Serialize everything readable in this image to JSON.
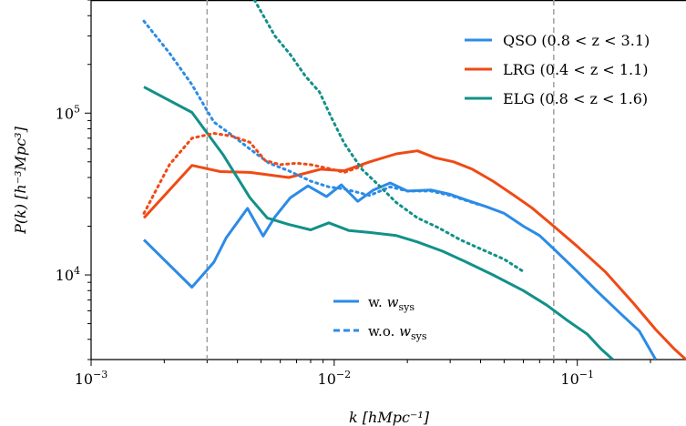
{
  "chart_data": {
    "type": "line",
    "xscale": "log",
    "yscale": "log",
    "xlim": [
      0.001,
      0.28
    ],
    "ylim": [
      3000,
      500000
    ],
    "xlabel": "k [hMpc⁻¹]",
    "ylabel": "P(k) [h⁻³Mpc³]",
    "x_ticks": [
      {
        "value": 0.001,
        "base": "10",
        "exp": "−3"
      },
      {
        "value": 0.01,
        "base": "10",
        "exp": "−2"
      },
      {
        "value": 0.1,
        "base": "10",
        "exp": "−1"
      }
    ],
    "y_ticks": [
      {
        "value": 10000,
        "base": "10",
        "exp": "4"
      },
      {
        "value": 100000,
        "base": "10",
        "exp": "5"
      }
    ],
    "vlines": [
      0.003,
      0.08
    ],
    "series": [
      {
        "name": "QSO (0.8 < z < 3.1)",
        "color": "#2c8be6",
        "style": "solid",
        "points": [
          [
            0.00165,
            16500
          ],
          [
            0.0026,
            8400
          ],
          [
            0.0032,
            12000
          ],
          [
            0.0036,
            17000
          ],
          [
            0.0044,
            25800
          ],
          [
            0.0051,
            17400
          ],
          [
            0.0057,
            22800
          ],
          [
            0.0066,
            30000
          ],
          [
            0.0078,
            35500
          ],
          [
            0.0093,
            30500
          ],
          [
            0.0107,
            36000
          ],
          [
            0.0125,
            28500
          ],
          [
            0.0145,
            33500
          ],
          [
            0.017,
            37000
          ],
          [
            0.02,
            33000
          ],
          [
            0.025,
            33500
          ],
          [
            0.03,
            31500
          ],
          [
            0.035,
            29000
          ],
          [
            0.042,
            26500
          ],
          [
            0.05,
            24000
          ],
          [
            0.06,
            20000
          ],
          [
            0.07,
            17500
          ],
          [
            0.08,
            14500
          ],
          [
            0.1,
            10500
          ],
          [
            0.12,
            8000
          ],
          [
            0.15,
            5800
          ],
          [
            0.18,
            4500
          ],
          [
            0.21,
            3000
          ]
        ]
      },
      {
        "name": "LRG (0.4 < z < 1.1)",
        "color": "#ef4a16",
        "style": "solid",
        "points": [
          [
            0.00165,
            22500
          ],
          [
            0.0026,
            47500
          ],
          [
            0.0034,
            43500
          ],
          [
            0.0045,
            43000
          ],
          [
            0.0065,
            40000
          ],
          [
            0.0088,
            45000
          ],
          [
            0.011,
            44000
          ],
          [
            0.014,
            50000
          ],
          [
            0.018,
            56000
          ],
          [
            0.022,
            58500
          ],
          [
            0.026,
            53000
          ],
          [
            0.031,
            50000
          ],
          [
            0.037,
            45000
          ],
          [
            0.045,
            38000
          ],
          [
            0.055,
            31000
          ],
          [
            0.065,
            26000
          ],
          [
            0.08,
            20000
          ],
          [
            0.1,
            15000
          ],
          [
            0.13,
            10500
          ],
          [
            0.17,
            6700
          ],
          [
            0.21,
            4600
          ],
          [
            0.25,
            3500
          ],
          [
            0.28,
            3000
          ]
        ]
      },
      {
        "name": "ELG (0.8 < z < 1.6)",
        "color": "#12908a",
        "style": "solid",
        "points": [
          [
            0.00165,
            145000
          ],
          [
            0.0026,
            101000
          ],
          [
            0.0035,
            55000
          ],
          [
            0.0045,
            30000
          ],
          [
            0.0053,
            22500
          ],
          [
            0.0065,
            20500
          ],
          [
            0.008,
            19000
          ],
          [
            0.0095,
            21000
          ],
          [
            0.0115,
            18800
          ],
          [
            0.014,
            18300
          ],
          [
            0.018,
            17500
          ],
          [
            0.022,
            16000
          ],
          [
            0.028,
            14000
          ],
          [
            0.035,
            12000
          ],
          [
            0.045,
            10000
          ],
          [
            0.06,
            8000
          ],
          [
            0.075,
            6500
          ],
          [
            0.09,
            5300
          ],
          [
            0.11,
            4300
          ],
          [
            0.125,
            3500
          ],
          [
            0.14,
            3000
          ]
        ]
      },
      {
        "name": "",
        "color": "#2c8be6",
        "style": "dotted",
        "points": [
          [
            0.00165,
            370000
          ],
          [
            0.0021,
            235000
          ],
          [
            0.0026,
            150000
          ],
          [
            0.0032,
            88000
          ],
          [
            0.0038,
            73000
          ],
          [
            0.0045,
            60000
          ],
          [
            0.0054,
            49000
          ],
          [
            0.0065,
            44000
          ],
          [
            0.008,
            38000
          ],
          [
            0.0095,
            35000
          ],
          [
            0.011,
            34000
          ],
          [
            0.014,
            31000
          ],
          [
            0.017,
            35000
          ],
          [
            0.02,
            33000
          ],
          [
            0.025,
            33000
          ],
          [
            0.03,
            31000
          ],
          [
            0.04,
            27000
          ]
        ]
      },
      {
        "name": "",
        "color": "#ef4a16",
        "style": "dotted",
        "points": [
          [
            0.00165,
            24000
          ],
          [
            0.0021,
            48000
          ],
          [
            0.0026,
            70000
          ],
          [
            0.0032,
            75000
          ],
          [
            0.0038,
            72000
          ],
          [
            0.0045,
            66000
          ],
          [
            0.0052,
            51000
          ],
          [
            0.006,
            48000
          ],
          [
            0.007,
            49000
          ],
          [
            0.008,
            48000
          ],
          [
            0.0095,
            45500
          ],
          [
            0.011,
            43000
          ],
          [
            0.013,
            47000
          ]
        ]
      },
      {
        "name": "",
        "color": "#12908a",
        "style": "dotted",
        "points": [
          [
            0.0047,
            500000
          ],
          [
            0.0057,
            300000
          ],
          [
            0.0066,
            230000
          ],
          [
            0.0076,
            170000
          ],
          [
            0.0087,
            135000
          ],
          [
            0.0098,
            92000
          ],
          [
            0.011,
            65000
          ],
          [
            0.013,
            45000
          ],
          [
            0.0155,
            35000
          ],
          [
            0.018,
            28000
          ],
          [
            0.022,
            22500
          ],
          [
            0.027,
            19500
          ],
          [
            0.033,
            16500
          ],
          [
            0.04,
            14500
          ],
          [
            0.05,
            12500
          ],
          [
            0.06,
            10500
          ]
        ]
      }
    ],
    "legend_top": {
      "position": "top-right",
      "entries": [
        {
          "label": "QSO",
          "range": "(0.8 < z < 3.1)"
        },
        {
          "label": "LRG",
          "range": "(0.4 < z < 1.1)"
        },
        {
          "label": "ELG",
          "range": "(0.8 < z < 1.6)"
        }
      ]
    },
    "legend_bottom": {
      "position": "lower-center",
      "entries": [
        {
          "label": "w.",
          "style": "solid"
        },
        {
          "label": "w.o.",
          "style": "dotted"
        }
      ],
      "symbol": "w",
      "symbol_sub": "sys"
    }
  }
}
